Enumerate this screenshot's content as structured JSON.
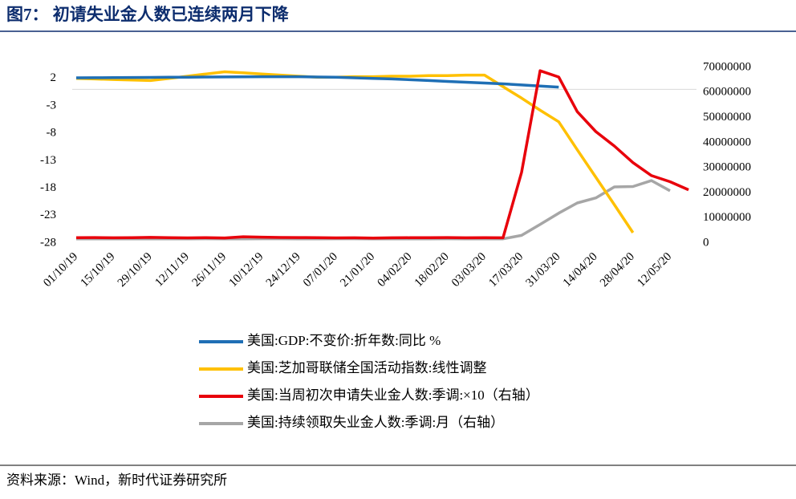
{
  "chart_data": {
    "type": "line",
    "title": "图7：  初请失业金人数已连续两月下降",
    "source": "资料来源：Wind，新时代证券研究所",
    "categories": [
      "01/10/19",
      null,
      "15/10/19",
      null,
      "29/10/19",
      null,
      "12/11/19",
      null,
      "26/11/19",
      null,
      "10/12/19",
      null,
      "24/12/19",
      null,
      "07/01/20",
      null,
      "21/01/20",
      null,
      "04/02/20",
      null,
      "18/02/20",
      null,
      "03/03/20",
      null,
      "17/03/20",
      null,
      "31/03/20",
      null,
      "14/04/20",
      null,
      "28/04/20",
      null,
      "12/05/20",
      null
    ],
    "ylim": [
      -28,
      4
    ],
    "yticks": [
      -28,
      -23,
      -18,
      -13,
      -8,
      -3,
      2
    ],
    "y2lim": [
      0,
      70000000
    ],
    "y2ticks": [
      0,
      10000000,
      20000000,
      30000000,
      40000000,
      50000000,
      60000000,
      70000000
    ],
    "series": [
      {
        "name": "美国:GDP:不变价:折年数:同比 %",
        "color": "#1f6fb5",
        "values": [
          2.1,
          2.12,
          2.14,
          2.16,
          2.18,
          2.2,
          2.22,
          2.24,
          2.26,
          2.28,
          2.3,
          2.3,
          2.3,
          2.25,
          2.2,
          2.1,
          2.0,
          1.9,
          1.75,
          1.6,
          1.45,
          1.3,
          1.15,
          1.0,
          0.8,
          0.6,
          0.4,
          null,
          null,
          null,
          null,
          null,
          null,
          null
        ]
      },
      {
        "name": "美国:芝加哥联储全国活动指数:线性调整",
        "color": "#ffc000",
        "values": [
          2.0,
          1.9,
          1.8,
          1.7,
          1.6,
          2.0,
          2.4,
          2.8,
          3.2,
          3.0,
          2.8,
          2.6,
          2.4,
          2.2,
          2.2,
          2.3,
          2.3,
          2.4,
          2.4,
          2.5,
          2.5,
          2.6,
          2.6,
          0.5,
          -1.6,
          -3.8,
          -5.9,
          -11,
          -16,
          -21,
          -26.1,
          null,
          null,
          null
        ]
      },
      {
        "name": "美国:当周初次申请失业金人数:季调:×10（右轴）",
        "color": "#e8000b",
        "axis": "y2",
        "values": [
          2150000,
          2190000,
          2120000,
          2180000,
          2270000,
          2130000,
          2080000,
          2170000,
          2030000,
          2520000,
          2350000,
          2250000,
          2220000,
          2140000,
          2070000,
          2120000,
          2020000,
          2110000,
          2140000,
          2160000,
          2190000,
          2110000,
          2160000,
          2110000,
          28200000,
          68670000,
          66150000,
          52370000,
          44420000,
          38670000,
          32070000,
          26870000,
          24460000,
          21230000
        ]
      },
      {
        "name": "美国:持续领取失业金人数:季调:月（右轴）",
        "color": "#a6a6a6",
        "axis": "y2",
        "values": [
          1700000,
          1690000,
          1680000,
          1700000,
          1690000,
          1710000,
          1700000,
          1720000,
          1690000,
          1710000,
          1730000,
          1720000,
          1710000,
          1700000,
          1740000,
          1720000,
          1700000,
          1690000,
          1710000,
          1700000,
          1720000,
          1700000,
          1710000,
          1700000,
          3060000,
          7450000,
          11910000,
          15980000,
          18010000,
          22380000,
          22550000,
          24910000,
          20840000,
          null
        ]
      }
    ]
  }
}
